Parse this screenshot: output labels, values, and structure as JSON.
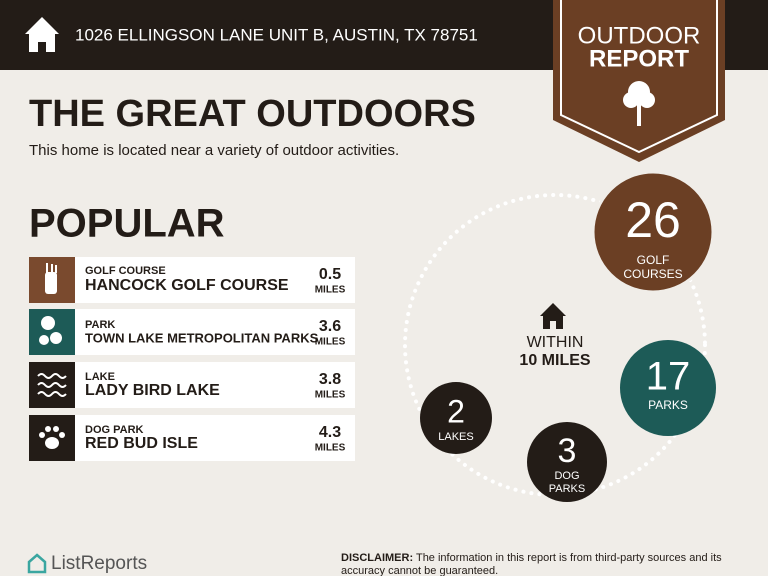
{
  "header": {
    "address": "1026 ELLINGSON LANE UNIT B, AUSTIN, TX 78751"
  },
  "badge": {
    "line1": "OUTDOOR",
    "line2": "REPORT"
  },
  "title": "THE GREAT OUTDOORS",
  "subtitle": "This home is located near a variety of outdoor activities.",
  "popular": {
    "heading": "POPULAR",
    "items": [
      {
        "category": "GOLF COURSE",
        "name": "HANCOCK GOLF COURSE",
        "distance": "0.5",
        "unit": "MILES"
      },
      {
        "category": "PARK",
        "name": "TOWN LAKE METROPOLITAN PARKS",
        "distance": "3.6",
        "unit": "MILES"
      },
      {
        "category": "LAKE",
        "name": "LADY BIRD LAKE",
        "distance": "3.8",
        "unit": "MILES"
      },
      {
        "category": "DOG PARK",
        "name": "RED BUD ISLE",
        "distance": "4.3",
        "unit": "MILES"
      }
    ]
  },
  "summary": {
    "center": {
      "line1": "WITHIN",
      "line2": "10 MILES"
    },
    "stats": [
      {
        "count": "26",
        "label": [
          "GOLF",
          "COURSES"
        ]
      },
      {
        "count": "17",
        "label": [
          "PARKS"
        ]
      },
      {
        "count": "2",
        "label": [
          "LAKES"
        ]
      },
      {
        "count": "3",
        "label": [
          "DOG",
          "PARKS"
        ]
      }
    ]
  },
  "footer": {
    "brand": "ListReports",
    "disclaimer_label": "DISCLAIMER:",
    "disclaimer": "The information in this report is from third-party sources and its accuracy cannot be guaranteed."
  }
}
